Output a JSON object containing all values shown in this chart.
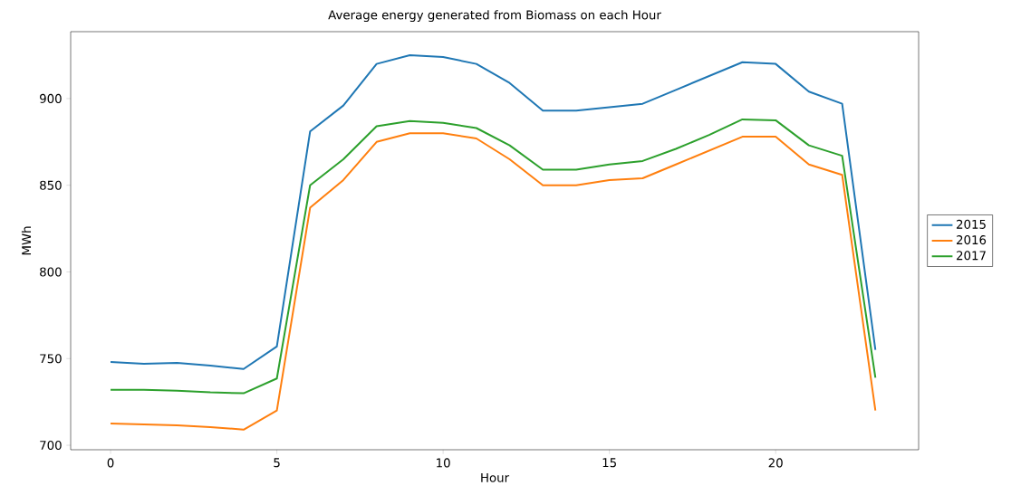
{
  "chart_data": {
    "type": "line",
    "title": "Average energy generated from Biomass on each Hour",
    "xlabel": "Hour",
    "ylabel": "MWh",
    "x": [
      0,
      1,
      2,
      3,
      4,
      5,
      6,
      7,
      8,
      9,
      10,
      11,
      12,
      13,
      14,
      15,
      16,
      17,
      18,
      19,
      20,
      21,
      22,
      23
    ],
    "series": [
      {
        "name": "2015",
        "color": "#1f77b4",
        "values": [
          748,
          747,
          747.5,
          746,
          744,
          757,
          881,
          896,
          920,
          925,
          924,
          920,
          909,
          893,
          893,
          895,
          897,
          905,
          913,
          921,
          920,
          904,
          897,
          755
        ]
      },
      {
        "name": "2016",
        "color": "#ff7f0e",
        "values": [
          712.5,
          712,
          711.5,
          710.5,
          709,
          720,
          837,
          853,
          875,
          880,
          880,
          877,
          865,
          850,
          850,
          853,
          854,
          862,
          870,
          878,
          878,
          862,
          856,
          720
        ]
      },
      {
        "name": "2017",
        "color": "#2ca02c",
        "values": [
          732,
          732,
          731.5,
          730.5,
          730,
          738.5,
          850,
          865,
          884,
          887,
          886,
          883,
          873,
          859,
          859,
          862,
          864,
          871,
          879,
          888,
          887.5,
          873,
          867,
          739
        ]
      }
    ],
    "xlim": [
      -1.2,
      24.3
    ],
    "ylim": [
      697.4,
      938.6
    ],
    "xticks": [
      0,
      5,
      10,
      15,
      20
    ],
    "yticks": [
      700,
      750,
      800,
      850,
      900
    ],
    "legend": "right"
  }
}
